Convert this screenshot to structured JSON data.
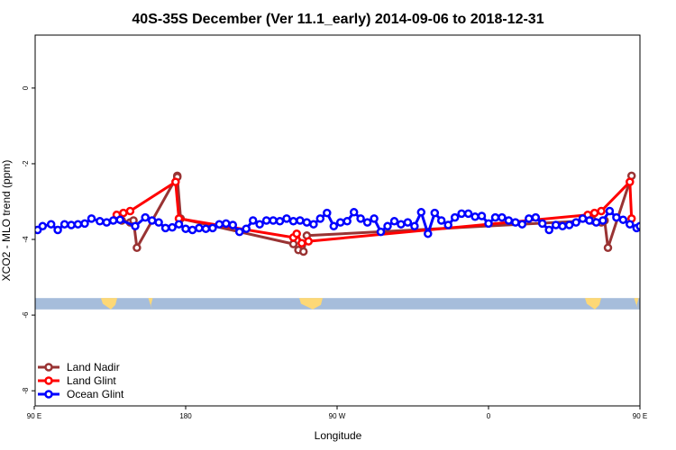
{
  "chart_data": {
    "type": "line",
    "title": "40S-35S December (Ver 11.1_early)   2014-09-06 to 2018-12-31",
    "xlabel": "Longitude",
    "ylabel": "XCO2 - MLO trend (ppm)",
    "xlim": [
      90,
      450
    ],
    "ylim": [
      -8.4,
      1.4
    ],
    "x_ticks": [
      {
        "value": 90,
        "label": "90 E"
      },
      {
        "value": 180,
        "label": "180"
      },
      {
        "value": 270,
        "label": "90 W"
      },
      {
        "value": 360,
        "label": "0"
      },
      {
        "value": 450,
        "label": "90 E"
      },
      {
        "value": 540,
        "label": "180"
      }
    ],
    "y_ticks": [
      {
        "value": 0,
        "label": "0"
      },
      {
        "value": -2,
        "label": "-2"
      },
      {
        "value": -4,
        "label": "-4"
      },
      {
        "value": -6,
        "label": "-6"
      },
      {
        "value": -8,
        "label": "-8"
      }
    ],
    "legend_position": "bottom-left",
    "land_band": {
      "y_top": -5.55,
      "y_bottom": -5.85,
      "color": "#a6bddb",
      "land_color": "#fdd876"
    },
    "series": [
      {
        "name": "Land Nadir",
        "color": "#993333",
        "points": [
          [
            142,
            -3.5
          ],
          [
            147,
            -3.55
          ],
          [
            149,
            -3.5
          ],
          [
            151,
            -4.22
          ],
          [
            175,
            -2.32
          ],
          [
            175,
            -2.35
          ],
          [
            177,
            -3.45
          ],
          [
            244,
            -4.12
          ],
          [
            247,
            -4.28
          ],
          [
            250,
            -4.32
          ],
          [
            252,
            -3.9
          ],
          [
            422,
            -3.5
          ],
          [
            427,
            -3.55
          ],
          [
            429,
            -3.5
          ],
          [
            431,
            -4.22
          ],
          [
            445,
            -2.32
          ]
        ]
      },
      {
        "name": "Land Glint",
        "color": "#ff0000",
        "points": [
          [
            139,
            -3.35
          ],
          [
            143,
            -3.3
          ],
          [
            147,
            -3.25
          ],
          [
            174,
            -2.48
          ],
          [
            176,
            -3.45
          ],
          [
            244,
            -3.95
          ],
          [
            246,
            -3.85
          ],
          [
            249,
            -4.1
          ],
          [
            253,
            -4.05
          ],
          [
            419,
            -3.35
          ],
          [
            423,
            -3.3
          ],
          [
            427,
            -3.25
          ],
          [
            444,
            -2.48
          ],
          [
            445,
            -3.45
          ]
        ]
      },
      {
        "name": "Ocean Glint",
        "color": "#0000ff",
        "points": [
          [
            92,
            -3.75
          ],
          [
            95,
            -3.65
          ],
          [
            100,
            -3.6
          ],
          [
            104,
            -3.75
          ],
          [
            108,
            -3.6
          ],
          [
            112,
            -3.62
          ],
          [
            116,
            -3.6
          ],
          [
            120,
            -3.58
          ],
          [
            124,
            -3.45
          ],
          [
            129,
            -3.52
          ],
          [
            133,
            -3.55
          ],
          [
            137,
            -3.5
          ],
          [
            141,
            -3.48
          ],
          [
            150,
            -3.65
          ],
          [
            156,
            -3.42
          ],
          [
            160,
            -3.5
          ],
          [
            164,
            -3.55
          ],
          [
            168,
            -3.7
          ],
          [
            172,
            -3.68
          ],
          [
            176,
            -3.6
          ],
          [
            180,
            -3.72
          ],
          [
            184,
            -3.75
          ],
          [
            188,
            -3.7
          ],
          [
            192,
            -3.72
          ],
          [
            196,
            -3.7
          ],
          [
            200,
            -3.6
          ],
          [
            204,
            -3.58
          ],
          [
            208,
            -3.62
          ],
          [
            212,
            -3.8
          ],
          [
            216,
            -3.72
          ],
          [
            220,
            -3.5
          ],
          [
            224,
            -3.6
          ],
          [
            228,
            -3.5
          ],
          [
            232,
            -3.5
          ],
          [
            236,
            -3.52
          ],
          [
            240,
            -3.45
          ],
          [
            244,
            -3.52
          ],
          [
            248,
            -3.5
          ],
          [
            252,
            -3.55
          ],
          [
            256,
            -3.6
          ],
          [
            260,
            -3.45
          ],
          [
            264,
            -3.3
          ],
          [
            268,
            -3.65
          ],
          [
            272,
            -3.55
          ],
          [
            276,
            -3.52
          ],
          [
            280,
            -3.28
          ],
          [
            284,
            -3.45
          ],
          [
            288,
            -3.55
          ],
          [
            292,
            -3.45
          ],
          [
            296,
            -3.8
          ],
          [
            300,
            -3.65
          ],
          [
            304,
            -3.52
          ],
          [
            308,
            -3.6
          ],
          [
            312,
            -3.55
          ],
          [
            316,
            -3.65
          ],
          [
            320,
            -3.28
          ],
          [
            324,
            -3.85
          ],
          [
            328,
            -3.3
          ],
          [
            332,
            -3.5
          ],
          [
            336,
            -3.62
          ],
          [
            340,
            -3.42
          ],
          [
            344,
            -3.32
          ],
          [
            348,
            -3.32
          ],
          [
            352,
            -3.4
          ],
          [
            356,
            -3.38
          ],
          [
            360,
            -3.58
          ],
          [
            364,
            -3.42
          ],
          [
            368,
            -3.42
          ],
          [
            372,
            -3.5
          ],
          [
            376,
            -3.55
          ],
          [
            380,
            -3.6
          ],
          [
            384,
            -3.45
          ],
          [
            388,
            -3.42
          ],
          [
            392,
            -3.58
          ],
          [
            396,
            -3.75
          ],
          [
            400,
            -3.62
          ],
          [
            404,
            -3.65
          ],
          [
            408,
            -3.62
          ],
          [
            412,
            -3.55
          ],
          [
            416,
            -3.45
          ],
          [
            420,
            -3.5
          ],
          [
            424,
            -3.55
          ],
          [
            428,
            -3.5
          ],
          [
            432,
            -3.25
          ],
          [
            436,
            -3.42
          ],
          [
            440,
            -3.48
          ],
          [
            444,
            -3.6
          ],
          [
            448,
            -3.7
          ],
          [
            450,
            -3.65
          ]
        ]
      }
    ]
  }
}
